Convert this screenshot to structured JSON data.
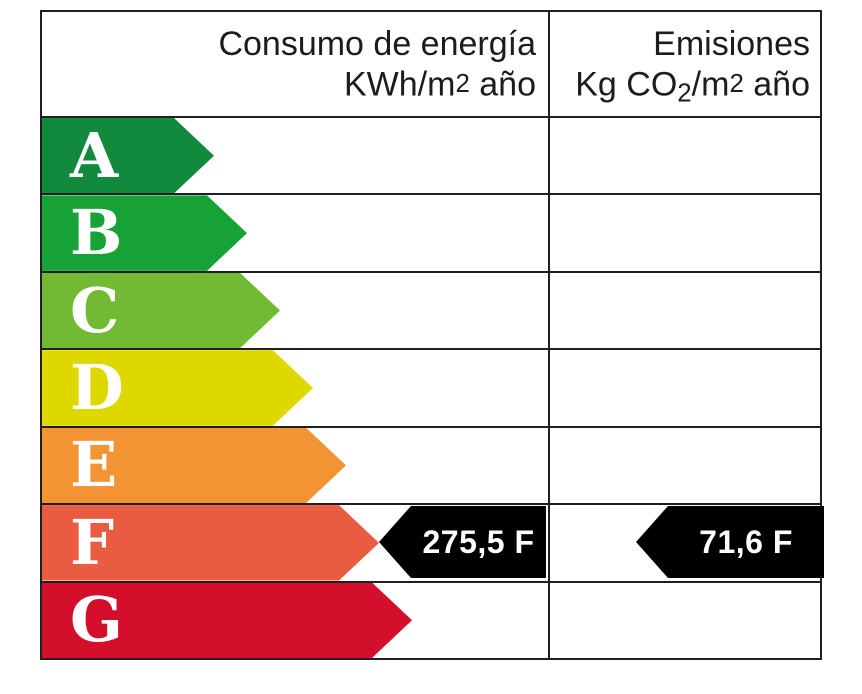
{
  "header": {
    "consumo": {
      "line1": "Consumo de energía",
      "line2_prefix": "KWh/m",
      "line2_sup": "2",
      "line2_suffix": " año"
    },
    "emisiones": {
      "line1": "Emisiones",
      "line2_p1": "Kg CO",
      "line2_sub": "2",
      "line2_p2": "/m",
      "line2_sup": "2",
      "line2_p3": " año"
    }
  },
  "rows": [
    {
      "label": "A",
      "color": "#128a3e",
      "arrow_width": 172
    },
    {
      "label": "B",
      "color": "#17a238",
      "arrow_width": 205
    },
    {
      "label": "C",
      "color": "#72ba33",
      "arrow_width": 238
    },
    {
      "label": "D",
      "color": "#ded700",
      "arrow_width": 271
    },
    {
      "label": "E",
      "color": "#f29434",
      "arrow_width": 304
    },
    {
      "label": "F",
      "color": "#e95c41",
      "arrow_width": 337
    },
    {
      "label": "G",
      "color": "#d40f2b",
      "arrow_width": 370
    }
  ],
  "values": {
    "consumo": "275,5 F",
    "emisiones": "71,6 F",
    "arrow_color": "#000000",
    "text_color": "#ffffff"
  },
  "chart_data": {
    "type": "table",
    "columns": [
      "Consumo de energía KWh/m2 año",
      "Emisiones Kg CO2/m2 año"
    ],
    "scale": [
      "A",
      "B",
      "C",
      "D",
      "E",
      "F",
      "G"
    ],
    "scale_colors": [
      "#128a3e",
      "#17a238",
      "#72ba33",
      "#ded700",
      "#f29434",
      "#e95c41",
      "#d40f2b"
    ],
    "consumo": {
      "value": 275.5,
      "display": "275,5",
      "rating": "F",
      "unit": "KWh/m2 año"
    },
    "emisiones": {
      "value": 71.6,
      "display": "71,6",
      "rating": "F",
      "unit": "Kg CO2/m2 año"
    }
  }
}
